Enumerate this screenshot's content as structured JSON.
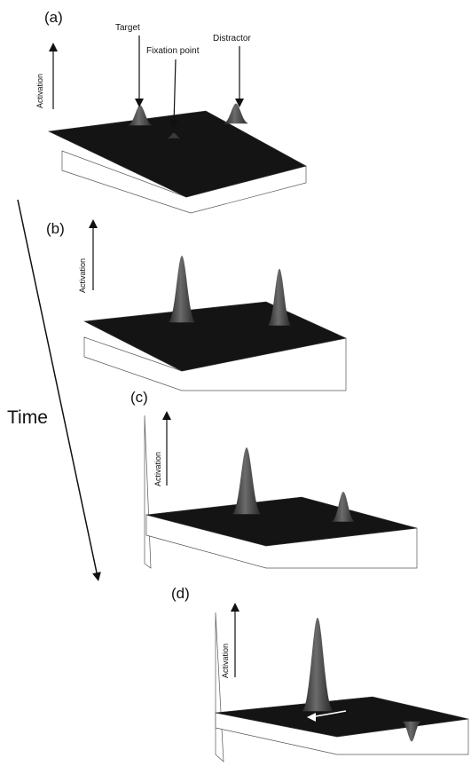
{
  "time_label": "Time",
  "panels": [
    {
      "label": "(a)",
      "axis_label": "Activation",
      "annotations": {
        "target": "Target",
        "fixation": "Fixation point",
        "distractor": "Distractor"
      },
      "peaks": {
        "target": 0.3,
        "distractor": 0.3,
        "fixation": 0.08
      }
    },
    {
      "label": "(b)",
      "axis_label": "Activation",
      "peaks": {
        "target": 1.0,
        "distractor": 0.85
      }
    },
    {
      "label": "(c)",
      "axis_label": "Activation",
      "peaks": {
        "target": 1.0,
        "distractor": 0.45
      }
    },
    {
      "label": "(d)",
      "axis_label": "Activation",
      "peaks": {
        "target": 1.4,
        "distractor": -0.3
      }
    }
  ],
  "colors": {
    "field": "#141414",
    "peak": "#4a4a4a",
    "axis": "#111111"
  }
}
